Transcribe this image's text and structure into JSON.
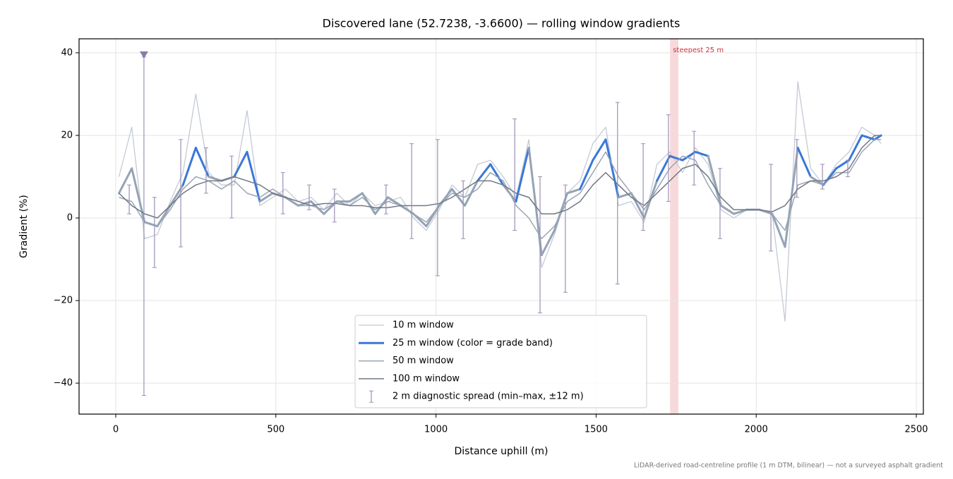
{
  "chart_data": {
    "type": "line",
    "title": "Discovered lane (52.7238, -3.6600) — rolling window gradients",
    "xlabel": "Distance uphill (m)",
    "ylabel": "Gradient (%)",
    "footnote": "LiDAR-derived road-centreline profile (1 m DTM, bilinear) — not a surveyed asphalt gradient",
    "xlim": [
      -114.6,
      2522
    ],
    "ylim": [
      -47.5,
      43.4
    ],
    "xticks": [
      0,
      500,
      1000,
      1500,
      2000,
      2500
    ],
    "yticks": [
      {
        "value": -40,
        "label": "−40"
      },
      {
        "value": -20,
        "label": "−20"
      },
      0,
      20,
      40
    ],
    "grid": true,
    "x": [
      10,
      50,
      90,
      130,
      170,
      210,
      250,
      290,
      330,
      370,
      410,
      450,
      490,
      530,
      570,
      610,
      650,
      690,
      730,
      770,
      810,
      850,
      890,
      930,
      970,
      1010,
      1050,
      1090,
      1130,
      1170,
      1210,
      1250,
      1290,
      1330,
      1370,
      1410,
      1450,
      1490,
      1530,
      1570,
      1610,
      1650,
      1690,
      1730,
      1770,
      1810,
      1850,
      1890,
      1930,
      1970,
      2010,
      2050,
      2090,
      2130,
      2170,
      2210,
      2250,
      2290,
      2330,
      2370,
      2390
    ],
    "series": [
      {
        "name": "10 m window",
        "color": "#c3cad5",
        "width": 1.3,
        "values": [
          10,
          22,
          -5,
          -4,
          4,
          11,
          30,
          11,
          8,
          8,
          26,
          3,
          5,
          7,
          4,
          5,
          2,
          6,
          3,
          6,
          3,
          4,
          5,
          0,
          -3,
          2,
          8,
          5,
          13,
          14,
          10,
          5,
          19,
          -12,
          -4,
          6,
          9,
          18,
          22,
          3,
          4,
          -1,
          13,
          16,
          11,
          17,
          13,
          2,
          0,
          2,
          2,
          1,
          -25,
          33,
          12,
          8,
          13,
          16,
          22,
          20,
          18
        ]
      },
      {
        "name": "25 m window (color = grade band)",
        "color": "#3a78d8",
        "width": 3,
        "band_limits": [
          10,
          20
        ],
        "band_colors": [
          "#95a3b5",
          "#3a78d8",
          "#e08a00"
        ],
        "values": [
          6,
          12,
          -1,
          -2,
          3,
          8,
          17,
          10,
          9,
          10,
          16,
          4,
          6,
          5,
          3,
          4,
          1,
          4,
          4,
          6,
          1,
          5,
          3,
          1,
          -2,
          3,
          7,
          3,
          9,
          13,
          8,
          4,
          17,
          -9,
          -3,
          6,
          7,
          14,
          19,
          5,
          6,
          0,
          9,
          15,
          14,
          16,
          15,
          3,
          1,
          2,
          2,
          1,
          -7,
          17,
          10,
          8,
          12,
          14,
          20,
          19,
          20
        ]
      },
      {
        "name": "50 m window",
        "color": "#9aa5b4",
        "width": 1.5,
        "values": [
          5,
          4,
          -1,
          -2,
          2,
          7,
          10,
          9,
          7,
          9,
          6,
          5,
          7,
          5,
          3,
          3,
          2,
          4,
          3,
          5,
          2,
          4,
          3,
          1,
          -1,
          3,
          6,
          5,
          7,
          11,
          9,
          3,
          0,
          -5,
          -2,
          4,
          6,
          11,
          16,
          10,
          6,
          2,
          7,
          12,
          15,
          14,
          8,
          3,
          1,
          2,
          2,
          1,
          -3,
          8,
          9,
          8,
          11,
          11,
          16,
          19,
          19
        ]
      },
      {
        "name": "100 m window",
        "color": "#6f7884",
        "width": 1.5,
        "values": [
          6,
          3,
          1,
          0,
          3,
          6,
          8,
          9,
          9,
          10,
          9,
          8,
          6,
          5,
          4,
          3,
          3.5,
          3.5,
          3,
          3,
          2.5,
          2.5,
          3,
          3,
          3,
          3.5,
          5,
          7,
          9,
          9,
          8,
          6,
          5,
          1,
          1,
          2,
          4,
          8,
          11,
          8,
          5,
          3,
          6,
          9,
          12,
          13,
          10,
          5,
          2,
          2,
          2,
          1.5,
          3,
          7,
          9,
          9,
          10,
          12,
          17,
          20,
          20
        ]
      }
    ],
    "spread": {
      "name": "2 m diagnostic spread (min–max, ±12 m)",
      "color": "#9a90b4",
      "x": [
        42,
        88,
        121,
        203,
        282,
        362,
        522,
        604,
        683,
        844,
        924,
        1005,
        1085,
        1246,
        1325,
        1404,
        1567,
        1647,
        1726,
        1806,
        1887,
        2046,
        2127,
        2207,
        2286
      ],
      "low": [
        1,
        -43,
        -12,
        -7,
        6,
        0,
        1,
        2,
        -1,
        1,
        -5,
        -14,
        -5,
        -3,
        -23,
        -18,
        -16,
        -3,
        4,
        8,
        -5,
        -8,
        5,
        7,
        10
      ],
      "high": [
        8,
        39,
        5,
        19,
        17,
        15,
        11,
        8,
        7,
        8,
        18,
        19,
        9,
        24,
        10,
        8,
        28,
        18,
        25,
        21,
        12,
        13,
        19,
        13,
        14
      ]
    },
    "clipped_marker": {
      "x": 88,
      "y": 39.5,
      "color": "#8a7aa8"
    },
    "steepest": {
      "label": "steepest 25 m",
      "x0": 1731,
      "x1": 1757,
      "color": "#f4c4c8",
      "text_color": "#d0303a"
    }
  }
}
